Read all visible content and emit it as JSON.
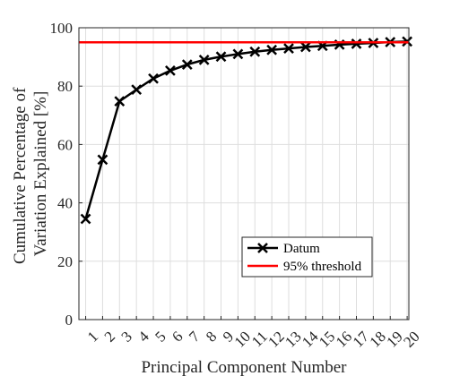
{
  "chart_data": {
    "type": "line",
    "xlabel": "Principal Component Number",
    "ylabel_lines": [
      "Cumulative Percentage of",
      "Variation Explained [%]"
    ],
    "x": [
      1,
      2,
      3,
      4,
      5,
      6,
      7,
      8,
      9,
      10,
      11,
      12,
      13,
      14,
      15,
      16,
      17,
      18,
      19,
      20
    ],
    "x_tick_labels": [
      "1",
      "2",
      "3",
      "4",
      "5",
      "6",
      "7",
      "8",
      "9",
      "10",
      "11",
      "12",
      "13",
      "14",
      "15",
      "16",
      "17",
      "18",
      "19",
      "20"
    ],
    "xlim": [
      0.6,
      20.1
    ],
    "ylim": [
      0,
      100
    ],
    "y_ticks": [
      0,
      20,
      40,
      60,
      80,
      100
    ],
    "y_tick_labels": [
      "0",
      "20",
      "40",
      "60",
      "80",
      "100"
    ],
    "grid": true,
    "legend_location": "lower-right",
    "series": [
      {
        "name": "Datum",
        "color": "#000000",
        "marker": "x",
        "values": [
          34.5,
          54.8,
          74.8,
          78.8,
          82.6,
          85.3,
          87.4,
          89.0,
          90.1,
          91.0,
          91.8,
          92.4,
          92.9,
          93.4,
          93.8,
          94.2,
          94.5,
          94.8,
          95.1,
          95.3
        ]
      },
      {
        "name": "95% threshold",
        "color": "#ff0000",
        "marker": "none",
        "constant": 95
      }
    ]
  }
}
